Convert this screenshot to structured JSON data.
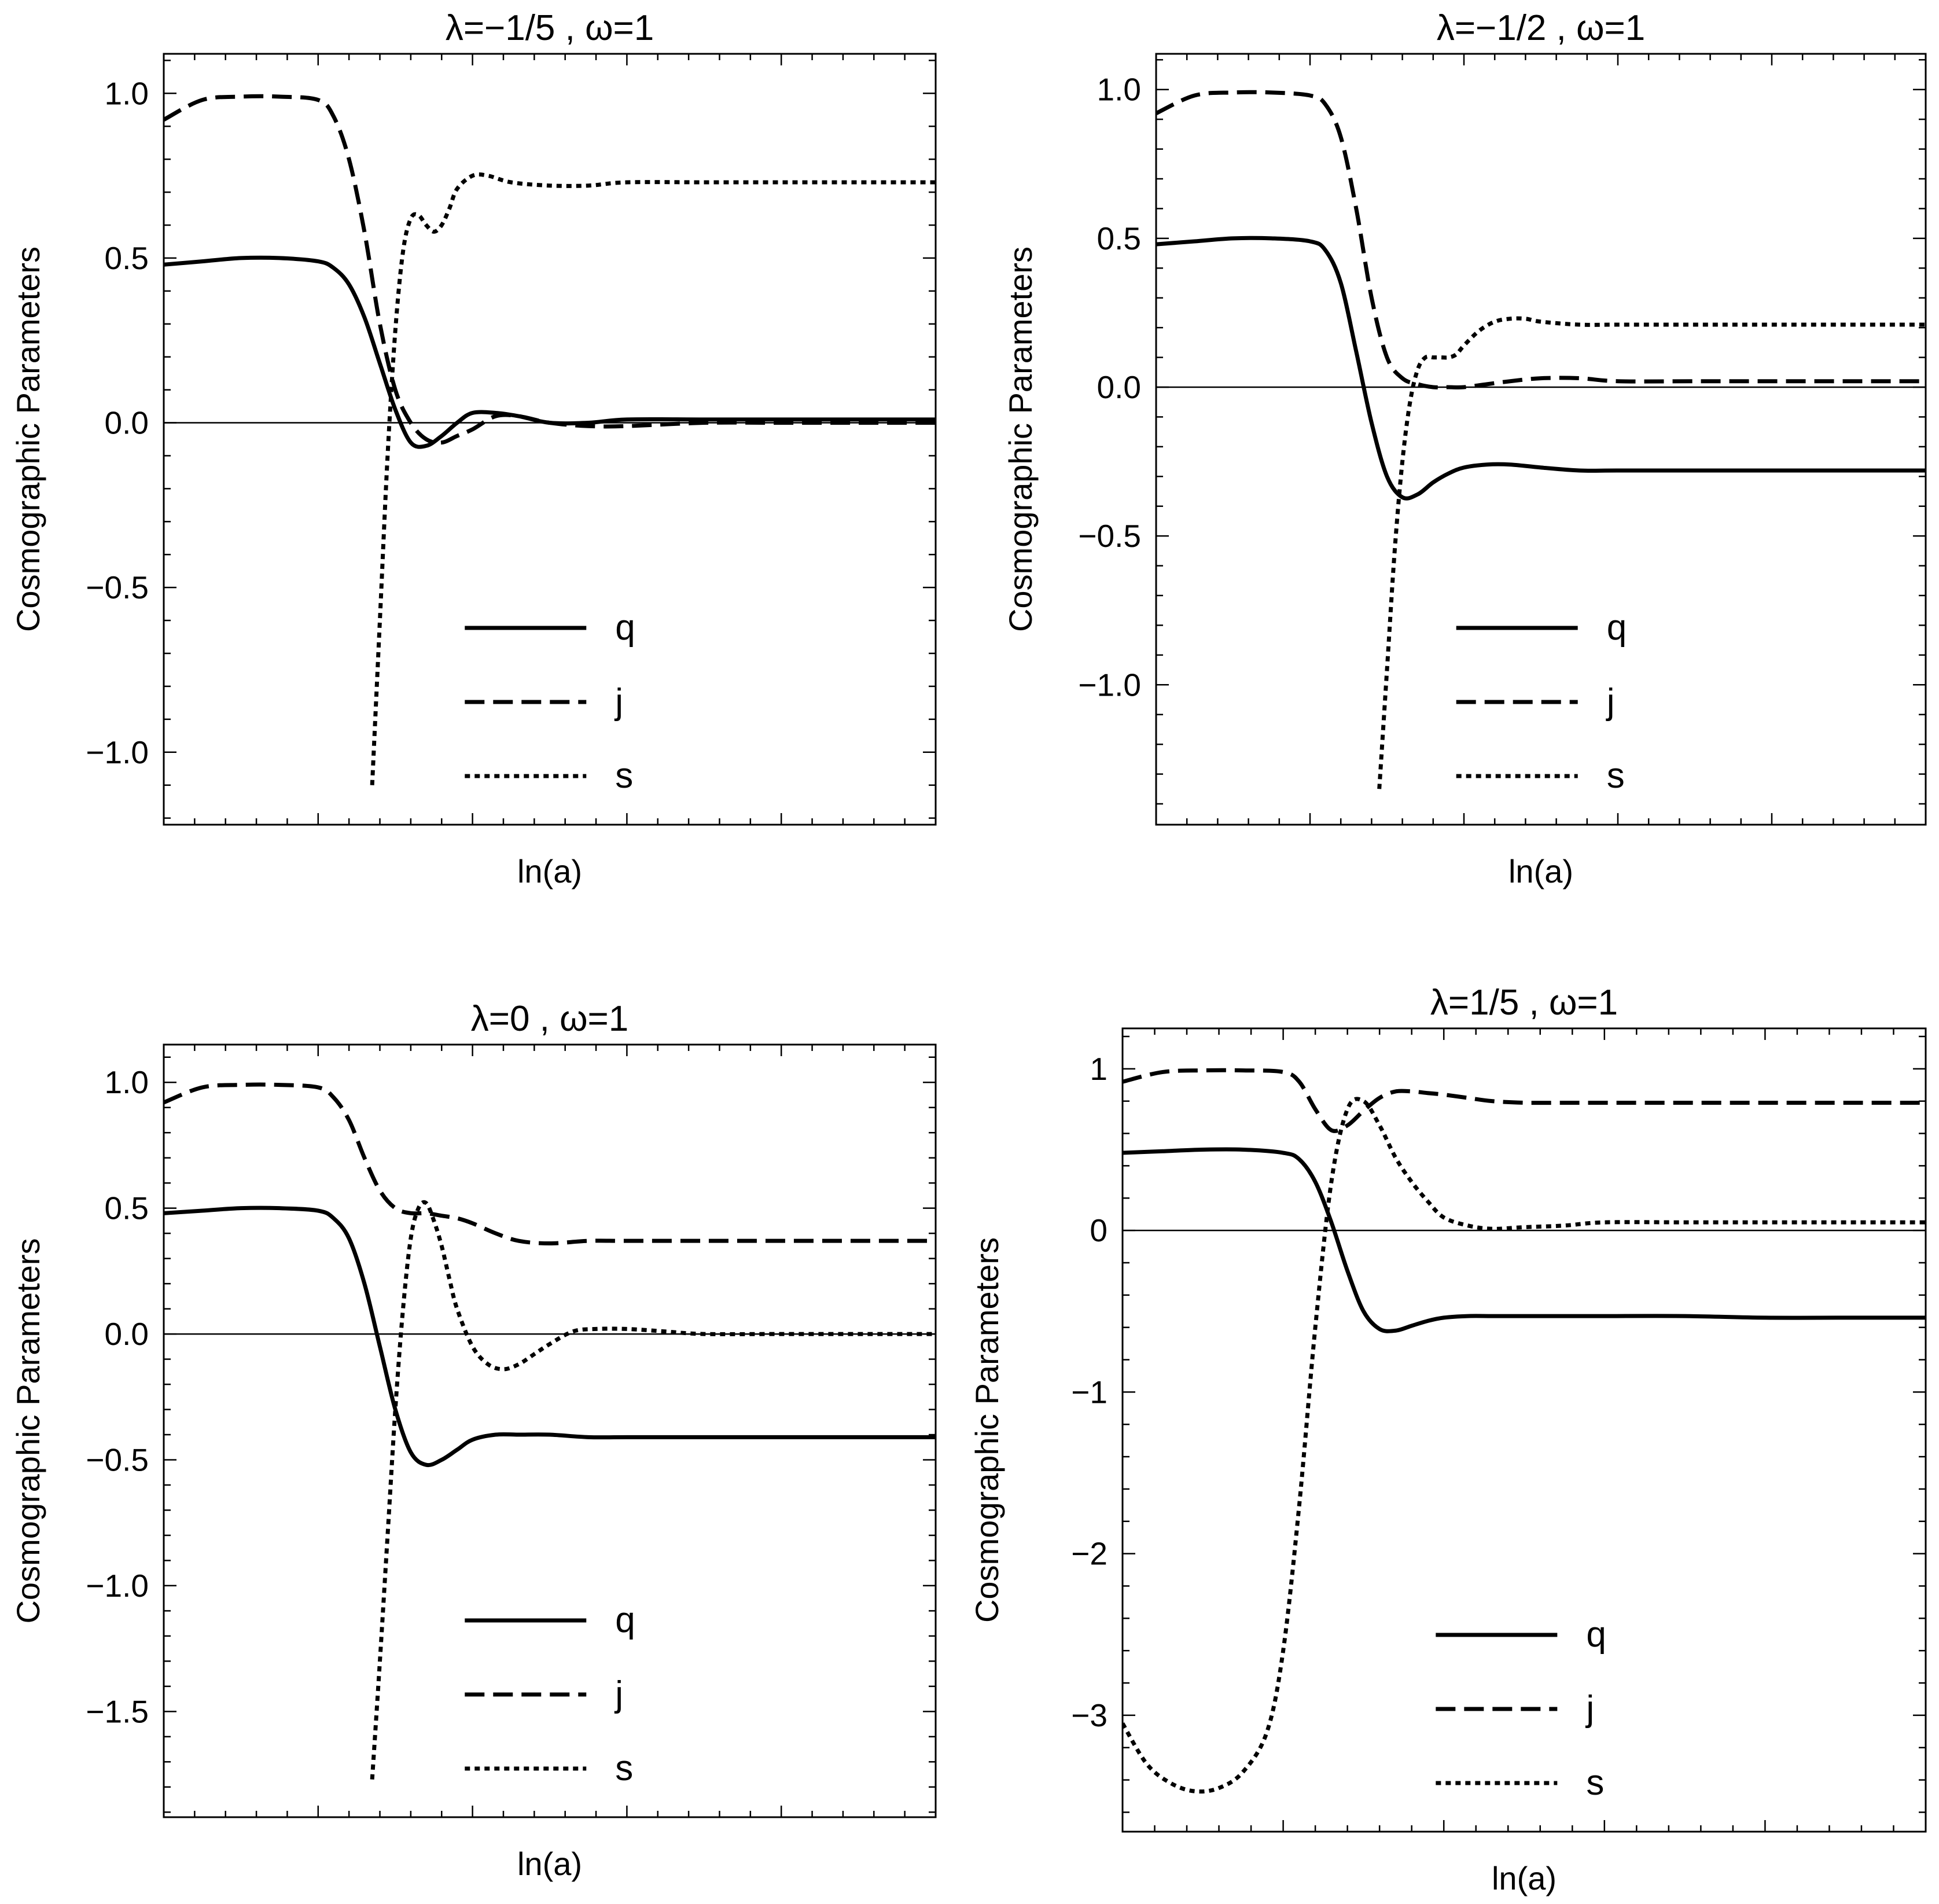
{
  "figure": {
    "x_axis_label": "ln(a)",
    "y_axis_label": "Cosmographic Parameters"
  },
  "chart_data": [
    {
      "type": "line",
      "title": "λ=−1/5 , ω=1",
      "xlabel": "ln(a)",
      "ylabel": "Cosmographic Parameters",
      "xlim": [
        0,
        100
      ],
      "ylim": [
        -1.22,
        1.12
      ],
      "yticks": [
        1.0,
        0.5,
        0.0,
        -0.5,
        -1.0
      ],
      "ytick_labels": [
        "1.0",
        "0.5",
        "0.0",
        "−0.5",
        "−1.0"
      ],
      "legend": {
        "position": "bottom-center",
        "entries": [
          "q",
          "j",
          "s"
        ]
      },
      "series": [
        {
          "name": "q",
          "style": "solid",
          "x": [
            0,
            5,
            10,
            15,
            20,
            22,
            24,
            26,
            28,
            30,
            32,
            34,
            36,
            38,
            40,
            43,
            46,
            50,
            55,
            60,
            70,
            80,
            90,
            100
          ],
          "y": [
            0.48,
            0.49,
            0.5,
            0.5,
            0.49,
            0.47,
            0.42,
            0.32,
            0.18,
            0.04,
            -0.06,
            -0.07,
            -0.04,
            0.0,
            0.03,
            0.03,
            0.02,
            0.0,
            0.0,
            0.01,
            0.01,
            0.01,
            0.01,
            0.01
          ]
        },
        {
          "name": "j",
          "style": "dashed",
          "x": [
            0,
            5,
            10,
            15,
            20,
            22,
            24,
            26,
            28,
            30,
            32,
            34,
            36,
            38,
            40,
            43,
            46,
            50,
            55,
            60,
            70,
            80,
            90,
            100
          ],
          "y": [
            0.92,
            0.98,
            0.99,
            0.99,
            0.98,
            0.93,
            0.8,
            0.58,
            0.3,
            0.1,
            0.0,
            -0.05,
            -0.06,
            -0.04,
            -0.02,
            0.02,
            0.02,
            0.0,
            -0.01,
            -0.01,
            0.0,
            0.0,
            0.0,
            0.0
          ]
        },
        {
          "name": "s",
          "style": "dotted",
          "x": [
            27,
            28,
            29,
            30,
            31,
            32,
            33,
            34,
            35,
            36,
            37,
            38,
            40,
            42,
            45,
            50,
            55,
            60,
            70,
            80,
            90,
            100
          ],
          "y": [
            -1.1,
            -0.6,
            -0.1,
            0.28,
            0.52,
            0.62,
            0.63,
            0.6,
            0.58,
            0.6,
            0.65,
            0.71,
            0.75,
            0.75,
            0.73,
            0.72,
            0.72,
            0.73,
            0.73,
            0.73,
            0.73,
            0.73
          ]
        }
      ]
    },
    {
      "type": "line",
      "title": "λ=−1/2 , ω=1",
      "xlabel": "ln(a)",
      "ylabel": "Cosmographic Parameters",
      "xlim": [
        0,
        100
      ],
      "ylim": [
        -1.47,
        1.12
      ],
      "yticks": [
        1.0,
        0.5,
        0.0,
        -0.5,
        -1.0
      ],
      "ytick_labels": [
        "1.0",
        "0.5",
        "0.0",
        "−0.5",
        "−1.0"
      ],
      "legend": {
        "position": "bottom-center",
        "entries": [
          "q",
          "j",
          "s"
        ]
      },
      "series": [
        {
          "name": "q",
          "style": "solid",
          "x": [
            0,
            5,
            10,
            15,
            20,
            22,
            24,
            26,
            28,
            30,
            32,
            34,
            36,
            38,
            40,
            43,
            46,
            50,
            55,
            60,
            70,
            80,
            90,
            100
          ],
          "y": [
            0.48,
            0.49,
            0.5,
            0.5,
            0.49,
            0.46,
            0.35,
            0.12,
            -0.12,
            -0.3,
            -0.37,
            -0.36,
            -0.32,
            -0.29,
            -0.27,
            -0.26,
            -0.26,
            -0.27,
            -0.28,
            -0.28,
            -0.28,
            -0.28,
            -0.28,
            -0.28
          ]
        },
        {
          "name": "j",
          "style": "dashed",
          "x": [
            0,
            5,
            10,
            15,
            20,
            22,
            24,
            26,
            28,
            30,
            32,
            34,
            36,
            38,
            40,
            43,
            46,
            50,
            55,
            60,
            70,
            80,
            90,
            100
          ],
          "y": [
            0.92,
            0.98,
            0.99,
            0.99,
            0.98,
            0.95,
            0.84,
            0.6,
            0.3,
            0.1,
            0.03,
            0.01,
            0.0,
            0.0,
            0.0,
            0.01,
            0.02,
            0.03,
            0.03,
            0.02,
            0.02,
            0.02,
            0.02,
            0.02
          ]
        },
        {
          "name": "s",
          "style": "dotted",
          "x": [
            29,
            30,
            31,
            32,
            33,
            34,
            35,
            36,
            37,
            38,
            39,
            40,
            42,
            44,
            46,
            48,
            50,
            55,
            60,
            70,
            80,
            90,
            100
          ],
          "y": [
            -1.35,
            -0.95,
            -0.55,
            -0.25,
            -0.05,
            0.06,
            0.1,
            0.1,
            0.1,
            0.1,
            0.11,
            0.14,
            0.19,
            0.22,
            0.23,
            0.23,
            0.22,
            0.21,
            0.21,
            0.21,
            0.21,
            0.21,
            0.21
          ]
        }
      ]
    },
    {
      "type": "line",
      "title": "λ=0 , ω=1",
      "xlabel": "ln(a)",
      "ylabel": "Cosmographic Parameters",
      "xlim": [
        0,
        100
      ],
      "ylim": [
        -1.92,
        1.15
      ],
      "yticks": [
        1.0,
        0.5,
        0.0,
        -0.5,
        -1.0,
        -1.5
      ],
      "ytick_labels": [
        "1.0",
        "0.5",
        "0.0",
        "−0.5",
        "−1.0",
        "−1.5"
      ],
      "legend": {
        "position": "bottom-center",
        "entries": [
          "q",
          "j",
          "s"
        ]
      },
      "series": [
        {
          "name": "q",
          "style": "solid",
          "x": [
            0,
            5,
            10,
            15,
            20,
            22,
            24,
            26,
            28,
            30,
            32,
            34,
            36,
            38,
            40,
            43,
            46,
            50,
            55,
            60,
            70,
            80,
            90,
            100
          ],
          "y": [
            0.48,
            0.49,
            0.5,
            0.5,
            0.49,
            0.46,
            0.38,
            0.2,
            -0.05,
            -0.3,
            -0.47,
            -0.52,
            -0.5,
            -0.46,
            -0.42,
            -0.4,
            -0.4,
            -0.4,
            -0.41,
            -0.41,
            -0.41,
            -0.41,
            -0.41,
            -0.41
          ]
        },
        {
          "name": "j",
          "style": "dashed",
          "x": [
            0,
            5,
            10,
            15,
            20,
            22,
            24,
            26,
            28,
            30,
            32,
            34,
            36,
            38,
            40,
            43,
            46,
            50,
            55,
            60,
            70,
            80,
            90,
            100
          ],
          "y": [
            0.92,
            0.98,
            0.99,
            0.99,
            0.98,
            0.94,
            0.85,
            0.7,
            0.57,
            0.5,
            0.48,
            0.48,
            0.47,
            0.46,
            0.44,
            0.4,
            0.37,
            0.36,
            0.37,
            0.37,
            0.37,
            0.37,
            0.37,
            0.37
          ]
        },
        {
          "name": "s",
          "style": "dotted",
          "x": [
            27,
            28,
            29,
            30,
            31,
            32,
            33,
            34,
            35,
            36,
            37,
            38,
            40,
            42,
            44,
            46,
            48,
            50,
            53,
            56,
            60,
            65,
            70,
            80,
            90,
            100
          ],
          "y": [
            -1.77,
            -1.3,
            -0.8,
            -0.3,
            0.1,
            0.38,
            0.5,
            0.52,
            0.45,
            0.35,
            0.22,
            0.1,
            -0.05,
            -0.12,
            -0.14,
            -0.12,
            -0.08,
            -0.04,
            0.01,
            0.02,
            0.02,
            0.01,
            0.0,
            0.0,
            0.0,
            0.0
          ]
        }
      ]
    },
    {
      "type": "line",
      "title": "λ=1/5 , ω=1",
      "xlabel": "ln(a)",
      "ylabel": "Cosmographic Parameters",
      "xlim": [
        0,
        100
      ],
      "ylim": [
        -3.72,
        1.25
      ],
      "yticks": [
        1,
        0,
        -1,
        -2,
        -3
      ],
      "ytick_labels": [
        "1",
        "0",
        "−1",
        "−2",
        "−3"
      ],
      "legend": {
        "position": "bottom-center",
        "entries": [
          "q",
          "j",
          "s"
        ]
      },
      "series": [
        {
          "name": "q",
          "style": "solid",
          "x": [
            0,
            5,
            10,
            15,
            20,
            22,
            24,
            26,
            28,
            30,
            32,
            34,
            36,
            38,
            40,
            43,
            46,
            50,
            55,
            60,
            70,
            80,
            90,
            100
          ],
          "y": [
            0.48,
            0.49,
            0.5,
            0.5,
            0.48,
            0.44,
            0.3,
            0.05,
            -0.25,
            -0.5,
            -0.61,
            -0.62,
            -0.59,
            -0.56,
            -0.54,
            -0.53,
            -0.53,
            -0.53,
            -0.53,
            -0.53,
            -0.53,
            -0.54,
            -0.54,
            -0.54
          ]
        },
        {
          "name": "j",
          "style": "dashed",
          "x": [
            0,
            5,
            10,
            15,
            20,
            22,
            24,
            26,
            28,
            30,
            32,
            34,
            36,
            38,
            40,
            43,
            46,
            50,
            55,
            60,
            70,
            80,
            90,
            100
          ],
          "y": [
            0.92,
            0.98,
            0.99,
            0.99,
            0.98,
            0.92,
            0.75,
            0.62,
            0.65,
            0.74,
            0.82,
            0.86,
            0.86,
            0.85,
            0.84,
            0.82,
            0.8,
            0.79,
            0.79,
            0.79,
            0.79,
            0.79,
            0.79,
            0.79
          ]
        },
        {
          "name": "s",
          "style": "dotted",
          "x": [
            0,
            3,
            6,
            9,
            12,
            15,
            18,
            20,
            22,
            24,
            26,
            28,
            30,
            32,
            34,
            36,
            38,
            40,
            43,
            46,
            50,
            55,
            60,
            70,
            80,
            90,
            100
          ],
          "y": [
            -3.05,
            -3.3,
            -3.42,
            -3.47,
            -3.45,
            -3.35,
            -3.1,
            -2.6,
            -1.7,
            -0.6,
            0.3,
            0.75,
            0.8,
            0.65,
            0.45,
            0.3,
            0.18,
            0.08,
            0.03,
            0.01,
            0.02,
            0.03,
            0.05,
            0.05,
            0.05,
            0.05,
            0.05
          ]
        }
      ]
    }
  ]
}
